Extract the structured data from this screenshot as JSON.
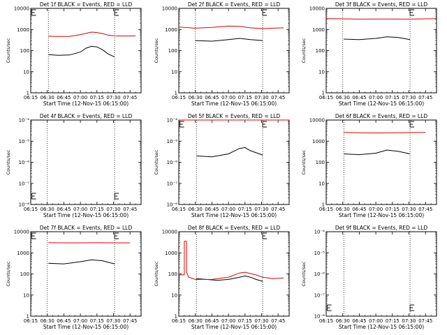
{
  "figure": {
    "panel_title_suffix": "BLACK = Events, RED = LLD",
    "x_title": "Start Time (12-Nov-15 06:15:00)",
    "y_title": "Counts/sec",
    "x_ticks": [
      "06:15",
      "06:30",
      "06:45",
      "07:00",
      "07:15",
      "07:30",
      "07:45"
    ],
    "colors": {
      "events": "#000000",
      "lld": "#e00000",
      "axes": "#000000",
      "background": "#ffffff"
    }
  },
  "chart_data": [
    {
      "type": "line",
      "detector": "Det 1f",
      "title": "Det 1f BLACK = Events, RED = LLD",
      "ylog": true,
      "ylim": [
        1,
        10000
      ],
      "y_tick_labels": [
        "1",
        "10",
        "100",
        "1000",
        "10000"
      ],
      "xlabel": "Start Time (12-Nov-15 06:15:00)",
      "ylabel": "Counts/sec",
      "xlim": [
        "06:15",
        "07:55"
      ],
      "vlines": [
        "06:31",
        "07:31"
      ],
      "flags": [
        "06:16",
        "07:31"
      ],
      "series": [
        {
          "name": "Events",
          "color": "#000000",
          "x": [
            "06:31",
            "06:40",
            "06:50",
            "07:00",
            "07:05",
            "07:10",
            "07:15",
            "07:20",
            "07:25",
            "07:31"
          ],
          "values": [
            65,
            60,
            62,
            85,
            130,
            160,
            150,
            110,
            70,
            50
          ]
        },
        {
          "name": "LLD",
          "color": "#e00000",
          "x": [
            "06:31",
            "06:40",
            "06:50",
            "07:00",
            "07:05",
            "07:10",
            "07:15",
            "07:20",
            "07:25",
            "07:31",
            "07:40",
            "07:50"
          ],
          "values": [
            480,
            470,
            470,
            570,
            650,
            750,
            720,
            640,
            540,
            500,
            490,
            500
          ]
        }
      ]
    },
    {
      "type": "line",
      "detector": "Det 2f",
      "title": "Det 2f BLACK = Events, RED = LLD",
      "ylog": true,
      "ylim": [
        1,
        10000
      ],
      "y_tick_labels": [
        "1",
        "10",
        "100",
        "1000",
        "10000"
      ],
      "xlabel": "Start Time (12-Nov-15 06:15:00)",
      "ylabel": "Counts/sec",
      "xlim": [
        "06:15",
        "07:55"
      ],
      "vlines": [
        "06:30",
        "07:31"
      ],
      "flags": [
        "07:31"
      ],
      "series": [
        {
          "name": "Events",
          "color": "#000000",
          "x": [
            "06:30",
            "06:45",
            "07:00",
            "07:10",
            "07:20",
            "07:31"
          ],
          "values": [
            300,
            280,
            330,
            380,
            330,
            300
          ]
        },
        {
          "name": "LLD",
          "color": "#e00000",
          "x": [
            "06:15",
            "06:30",
            "06:45",
            "07:00",
            "07:10",
            "07:20",
            "07:31",
            "07:40",
            "07:50"
          ],
          "values": [
            1300,
            1150,
            1250,
            1450,
            1400,
            1200,
            1100,
            1150,
            1200
          ]
        }
      ]
    },
    {
      "type": "line",
      "detector": "Det 3f",
      "title": "Det 3f BLACK = Events, RED = LLD",
      "ylog": true,
      "ylim": [
        1,
        10000
      ],
      "y_tick_labels": [
        "1",
        "10",
        "100",
        "1000",
        "10000"
      ],
      "xlabel": "Start Time (12-Nov-15 06:15:00)",
      "ylabel": "Counts/sec",
      "xlim": [
        "06:15",
        "07:55"
      ],
      "vlines": [
        "06:30",
        "07:31"
      ],
      "flags": [
        "07:31"
      ],
      "series": [
        {
          "name": "Events",
          "color": "#000000",
          "x": [
            "06:31",
            "06:45",
            "07:00",
            "07:10",
            "07:20",
            "07:31"
          ],
          "values": [
            350,
            330,
            380,
            450,
            420,
            330
          ]
        },
        {
          "name": "LLD",
          "color": "#e00000",
          "x": [
            "06:15",
            "06:30",
            "06:45",
            "07:00",
            "07:15",
            "07:31",
            "07:45",
            "07:55"
          ],
          "values": [
            3300,
            3200,
            3100,
            3150,
            3150,
            3100,
            3200,
            3250
          ]
        }
      ]
    },
    {
      "type": "line",
      "detector": "Det 4f",
      "title": "Det 4f BLACK = Events, RED = LLD",
      "ylog": true,
      "ylim": [
        1e-08,
        0.0001
      ],
      "y_tick_labels": [
        "10⁻⁸",
        "10⁻⁷",
        "10⁻⁶",
        "10⁻⁵",
        "10⁻⁴"
      ],
      "xlabel": "Start Time (12-Nov-15 06:15:00)",
      "ylabel": "Counts/sec",
      "xlim": [
        "06:15",
        "07:55"
      ],
      "vlines": [
        "06:30",
        "07:31"
      ],
      "flags": [
        "06:16",
        "07:31"
      ],
      "series": []
    },
    {
      "type": "line",
      "detector": "Det 5f",
      "title": "Det 5f BLACK = Events, RED = LLD",
      "ylog": true,
      "ylim": [
        1e-08,
        0.0001
      ],
      "y_tick_labels": [
        "10⁻⁸",
        "10⁻⁷",
        "10⁻⁶",
        "10⁻⁵",
        "10⁻⁴"
      ],
      "xlabel": "Start Time (12-Nov-15 06:15:00)",
      "ylabel": "Counts/sec",
      "xlim": [
        "06:15",
        "07:55"
      ],
      "vlines": [
        "06:31",
        "07:31"
      ],
      "flags": [
        "06:16",
        "07:31"
      ],
      "series": [
        {
          "name": "Events",
          "color": "#000000",
          "x": [
            "06:31",
            "06:45",
            "07:00",
            "07:10",
            "07:15",
            "07:20",
            "07:31"
          ],
          "values": [
            2e-06,
            1.8e-06,
            2.5e-06,
            4.5e-06,
            5e-06,
            3.5e-06,
            2.2e-06
          ]
        },
        {
          "name": "LLD",
          "color": "#e00000",
          "x": [
            "06:15",
            "07:55"
          ],
          "values": [
            0.0001,
            0.0001
          ]
        }
      ]
    },
    {
      "type": "line",
      "detector": "Det 6f",
      "title": "Det 6f BLACK = Events, RED = LLD",
      "ylog": true,
      "ylim": [
        1,
        10000
      ],
      "y_tick_labels": [
        "1",
        "10",
        "100",
        "1000",
        "10000"
      ],
      "xlabel": "Start Time (12-Nov-15 06:15:00)",
      "ylabel": "Counts/sec",
      "xlim": [
        "06:15",
        "07:55"
      ],
      "vlines": [
        "06:31",
        "07:31"
      ],
      "flags": [
        "07:31"
      ],
      "series": [
        {
          "name": "Events",
          "color": "#000000",
          "x": [
            "06:31",
            "06:45",
            "07:00",
            "07:10",
            "07:20",
            "07:31"
          ],
          "values": [
            250,
            230,
            270,
            380,
            330,
            250
          ]
        },
        {
          "name": "LLD",
          "color": "#e00000",
          "x": [
            "06:31",
            "06:45",
            "07:00",
            "07:15",
            "07:31",
            "07:45"
          ],
          "values": [
            2600,
            2500,
            2450,
            2500,
            2550,
            2600
          ]
        }
      ]
    },
    {
      "type": "line",
      "detector": "Det 7f",
      "title": "Det 7f BLACK = Events, RED = LLD",
      "ylog": true,
      "ylim": [
        1,
        10000
      ],
      "y_tick_labels": [
        "1",
        "10",
        "100",
        "1000",
        "10000"
      ],
      "xlabel": "Start Time (12-Nov-15 06:15:00)",
      "ylabel": "Counts/sec",
      "xlim": [
        "06:15",
        "07:55"
      ],
      "vlines": [
        "06:30",
        "07:31"
      ],
      "flags": [
        "06:16",
        "07:31"
      ],
      "series": [
        {
          "name": "Events",
          "color": "#000000",
          "x": [
            "06:31",
            "06:45",
            "07:00",
            "07:10",
            "07:20",
            "07:31"
          ],
          "values": [
            320,
            300,
            380,
            470,
            420,
            300
          ]
        },
        {
          "name": "LLD",
          "color": "#e00000",
          "x": [
            "06:31",
            "06:45",
            "07:00",
            "07:15",
            "07:31",
            "07:45"
          ],
          "values": [
            3000,
            2950,
            2950,
            3000,
            2950,
            2950
          ]
        }
      ]
    },
    {
      "type": "line",
      "detector": "Det 8f",
      "title": "Det 8f BLACK = Events, RED = LLD",
      "ylog": true,
      "ylim": [
        1,
        10000
      ],
      "y_tick_labels": [
        "1",
        "10",
        "100",
        "1000",
        "10000"
      ],
      "xlabel": "Start Time (12-Nov-15 06:15:00)",
      "ylabel": "Counts/sec",
      "xlim": [
        "06:15",
        "07:55"
      ],
      "vlines": [
        "06:31",
        "07:31"
      ],
      "flags": [
        "07:31"
      ],
      "series": [
        {
          "name": "Events",
          "color": "#000000",
          "x": [
            "06:31",
            "06:40",
            "06:50",
            "07:00",
            "07:10",
            "07:15",
            "07:20",
            "07:25",
            "07:31"
          ],
          "values": [
            60,
            55,
            50,
            55,
            70,
            80,
            70,
            55,
            45
          ]
        },
        {
          "name": "LLD",
          "color": "#e00000",
          "x": [
            "06:15",
            "06:20",
            "06:20",
            "06:22",
            "06:22",
            "06:24",
            "06:30",
            "06:45",
            "07:00",
            "07:10",
            "07:15",
            "07:25",
            "07:31",
            "07:40",
            "07:50"
          ],
          "values": [
            90,
            90,
            3500,
            3500,
            120,
            70,
            55,
            55,
            70,
            110,
            120,
            90,
            70,
            60,
            65
          ]
        }
      ]
    },
    {
      "type": "line",
      "detector": "Det 9f",
      "title": "Det 9f BLACK = Events, RED = LLD",
      "ylog": true,
      "ylim": [
        1e-08,
        0.0001
      ],
      "y_tick_labels": [
        "10⁻⁸",
        "10⁻⁷",
        "10⁻⁶",
        "10⁻⁵",
        "10⁻⁴"
      ],
      "xlabel": "Start Time (12-Nov-15 06:15:00)",
      "ylabel": "Counts/sec",
      "xlim": [
        "06:15",
        "07:55"
      ],
      "vlines": [
        "06:31",
        "07:31"
      ],
      "flags": [
        "06:16",
        "07:31"
      ],
      "series": []
    }
  ]
}
